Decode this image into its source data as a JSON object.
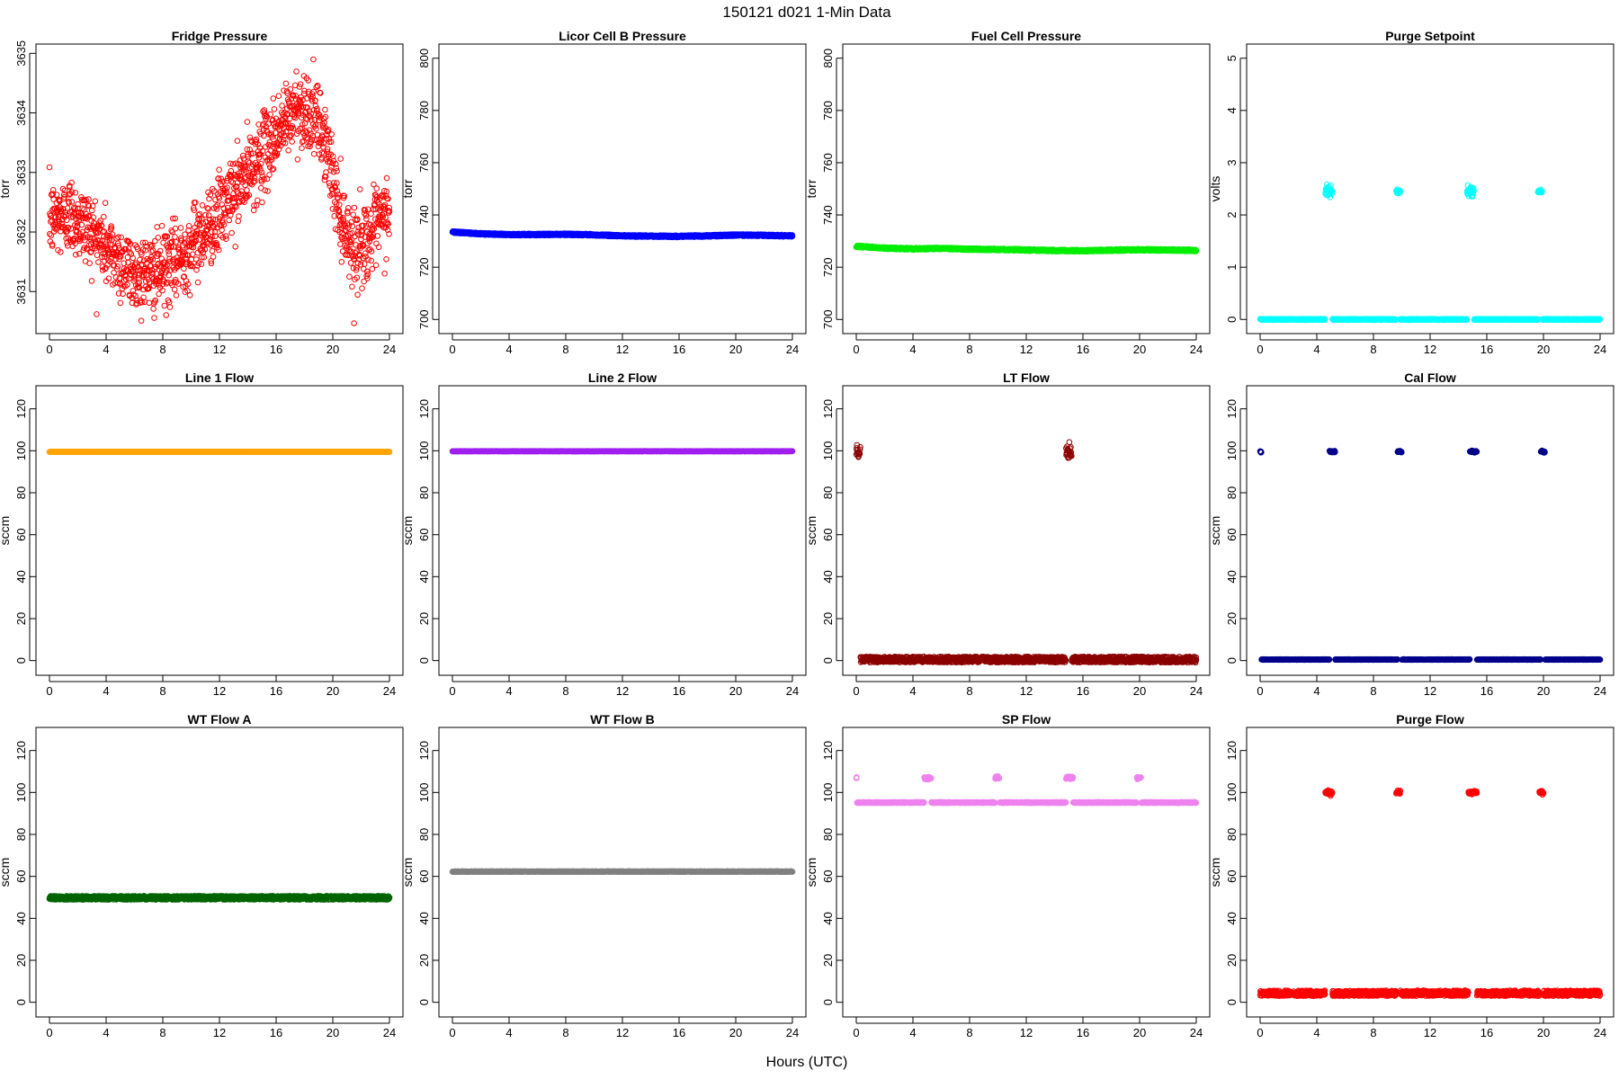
{
  "page": {
    "title": "150121   d021   1-Min Data",
    "xlabel": "Hours (UTC)"
  },
  "chart_data": [
    {
      "type": "scatter",
      "title": "Fridge Pressure",
      "ylabel": "torr",
      "color": "#ff0000",
      "ylim": [
        3630.4,
        3635.05
      ],
      "yticks": [
        3631,
        3632,
        3633,
        3634,
        3635
      ],
      "xlim": [
        0,
        24
      ],
      "xticks": [
        0,
        4,
        8,
        12,
        16,
        20,
        24
      ],
      "marker": "open-circle",
      "pattern": "noisy",
      "noise": 0.32,
      "n": 1400,
      "profile_x": [
        0,
        1.5,
        3,
        4.5,
        6,
        7.5,
        9,
        10.5,
        12,
        13.5,
        15,
        16.5,
        17.5,
        18.5,
        19.5,
        20.5,
        21.5,
        22.5,
        23.5,
        24
      ],
      "profile_y": [
        3632.2,
        3632.3,
        3632.0,
        3631.6,
        3631.3,
        3631.3,
        3631.5,
        3631.9,
        3632.3,
        3632.8,
        3633.3,
        3633.8,
        3634.1,
        3634.0,
        3633.5,
        3632.3,
        3631.7,
        3631.9,
        3632.2,
        3632.4
      ]
    },
    {
      "type": "scatter",
      "title": "Licor Cell B Pressure",
      "ylabel": "torr",
      "color": "#0000ff",
      "ylim": [
        697,
        803
      ],
      "yticks": [
        700,
        720,
        740,
        760,
        780,
        800
      ],
      "xlim": [
        0,
        24
      ],
      "xticks": [
        0,
        4,
        8,
        12,
        16,
        20,
        24
      ],
      "marker": "open-circle",
      "pattern": "dense",
      "noise": 0.35,
      "n": 1440,
      "profile_x": [
        0,
        2,
        4,
        6,
        8,
        10,
        12,
        14,
        16,
        18,
        20,
        22,
        24
      ],
      "profile_y": [
        733.5,
        732.8,
        732.5,
        732.5,
        732.6,
        732.4,
        732.0,
        731.9,
        731.8,
        732.0,
        732.3,
        732.2,
        732.0
      ]
    },
    {
      "type": "scatter",
      "title": "Fuel Cell Pressure",
      "ylabel": "torr",
      "color": "#00ee00",
      "ylim": [
        697,
        803
      ],
      "yticks": [
        700,
        720,
        740,
        760,
        780,
        800
      ],
      "xlim": [
        0,
        24
      ],
      "xticks": [
        0,
        4,
        8,
        12,
        16,
        20,
        24
      ],
      "marker": "open-circle",
      "pattern": "dense",
      "noise": 0.35,
      "n": 1440,
      "profile_x": [
        0,
        2,
        4,
        6,
        8,
        10,
        12,
        14,
        16,
        18,
        20,
        22,
        24
      ],
      "profile_y": [
        728.0,
        727.3,
        727.0,
        727.2,
        726.9,
        726.8,
        726.6,
        726.4,
        726.3,
        726.5,
        726.7,
        726.6,
        726.4
      ]
    },
    {
      "type": "scatter",
      "title": "Purge Setpoint",
      "ylabel": "volts",
      "color": "#00ffff",
      "ylim": [
        -0.15,
        5.15
      ],
      "yticks": [
        0,
        1,
        2,
        3,
        4,
        5
      ],
      "xlim": [
        0,
        24
      ],
      "xticks": [
        0,
        4,
        8,
        12,
        16,
        20,
        24
      ],
      "marker": "open-circle",
      "pattern": "flat",
      "baseline": 0,
      "noise": 0.01,
      "n": 1440,
      "clusters": [
        {
          "x_start": 4.6,
          "x_end": 5.1,
          "y": 2.45,
          "spread": 0.05
        },
        {
          "x_start": 9.6,
          "x_end": 9.9,
          "y": 2.45,
          "spread": 0.02
        },
        {
          "x_start": 14.6,
          "x_end": 15.1,
          "y": 2.45,
          "spread": 0.05
        },
        {
          "x_start": 19.6,
          "x_end": 19.9,
          "y": 2.45,
          "spread": 0.02
        }
      ]
    },
    {
      "type": "scatter",
      "title": "Line 1 Flow",
      "ylabel": "sccm",
      "color": "#ffa500",
      "ylim": [
        -4,
        128
      ],
      "yticks": [
        0,
        20,
        40,
        60,
        80,
        100,
        120
      ],
      "xlim": [
        0,
        24
      ],
      "xticks": [
        0,
        4,
        8,
        12,
        16,
        20,
        24
      ],
      "marker": "open-circle",
      "pattern": "flat",
      "baseline": 99.5,
      "noise": 0.05,
      "n": 1440
    },
    {
      "type": "scatter",
      "title": "Line 2 Flow",
      "ylabel": "sccm",
      "color": "#a020f0",
      "ylim": [
        -4,
        128
      ],
      "yticks": [
        0,
        20,
        40,
        60,
        80,
        100,
        120
      ],
      "xlim": [
        0,
        24
      ],
      "xticks": [
        0,
        4,
        8,
        12,
        16,
        20,
        24
      ],
      "marker": "open-circle",
      "pattern": "flat",
      "baseline": 99.8,
      "noise": 0.05,
      "n": 1440
    },
    {
      "type": "scatter",
      "title": "LT Flow",
      "ylabel": "sccm",
      "color": "#8b0000",
      "ylim": [
        -4,
        128
      ],
      "yticks": [
        0,
        20,
        40,
        60,
        80,
        100,
        120
      ],
      "xlim": [
        0,
        24
      ],
      "xticks": [
        0,
        4,
        8,
        12,
        16,
        20,
        24
      ],
      "marker": "open-circle",
      "pattern": "flat",
      "baseline": 0.5,
      "noise": 1.4,
      "n": 1440,
      "clusters": [
        {
          "x_start": 0.0,
          "x_end": 0.3,
          "y": 99.5,
          "spread": 1.5
        },
        {
          "x_start": 14.8,
          "x_end": 15.2,
          "y": 99.5,
          "spread": 1.8
        }
      ]
    },
    {
      "type": "scatter",
      "title": "Cal Flow",
      "ylabel": "sccm",
      "color": "#00008b",
      "ylim": [
        -4,
        128
      ],
      "yticks": [
        0,
        20,
        40,
        60,
        80,
        100,
        120
      ],
      "xlim": [
        0,
        24
      ],
      "xticks": [
        0,
        4,
        8,
        12,
        16,
        20,
        24
      ],
      "marker": "open-circle",
      "pattern": "flat",
      "baseline": 0.5,
      "noise": 0.15,
      "n": 1440,
      "clusters": [
        {
          "x_start": 0.0,
          "x_end": 0.1,
          "y": 99.5,
          "spread": 0.2
        },
        {
          "x_start": 4.9,
          "x_end": 5.3,
          "y": 99.6,
          "spread": 0.2
        },
        {
          "x_start": 9.7,
          "x_end": 10.0,
          "y": 99.6,
          "spread": 0.2
        },
        {
          "x_start": 14.8,
          "x_end": 15.3,
          "y": 99.6,
          "spread": 0.2
        },
        {
          "x_start": 19.8,
          "x_end": 20.1,
          "y": 99.6,
          "spread": 0.2
        }
      ]
    },
    {
      "type": "scatter",
      "title": "WT Flow A",
      "ylabel": "sccm",
      "color": "#006400",
      "ylim": [
        -4,
        128
      ],
      "yticks": [
        0,
        20,
        40,
        60,
        80,
        100,
        120
      ],
      "xlim": [
        0,
        24
      ],
      "xticks": [
        0,
        4,
        8,
        12,
        16,
        20,
        24
      ],
      "marker": "open-circle",
      "pattern": "flat",
      "baseline": 49.8,
      "noise": 0.9,
      "n": 1440
    },
    {
      "type": "scatter",
      "title": "WT Flow B",
      "ylabel": "sccm",
      "color": "#808080",
      "ylim": [
        -4,
        128
      ],
      "yticks": [
        0,
        20,
        40,
        60,
        80,
        100,
        120
      ],
      "xlim": [
        0,
        24
      ],
      "xticks": [
        0,
        4,
        8,
        12,
        16,
        20,
        24
      ],
      "marker": "open-circle",
      "pattern": "flat",
      "baseline": 62.3,
      "noise": 0.15,
      "n": 1440
    },
    {
      "type": "scatter",
      "title": "SP Flow",
      "ylabel": "sccm",
      "color": "#ee82ee",
      "ylim": [
        -4,
        128
      ],
      "yticks": [
        0,
        20,
        40,
        60,
        80,
        100,
        120
      ],
      "xlim": [
        0,
        24
      ],
      "xticks": [
        0,
        4,
        8,
        12,
        16,
        20,
        24
      ],
      "marker": "open-circle",
      "pattern": "flat",
      "baseline": 95.2,
      "noise": 0.2,
      "n": 1440,
      "clusters": [
        {
          "x_start": 0.0,
          "x_end": 0.05,
          "y": 107,
          "spread": 0.2
        },
        {
          "x_start": 4.8,
          "x_end": 5.3,
          "y": 107,
          "spread": 0.3
        },
        {
          "x_start": 9.8,
          "x_end": 10.1,
          "y": 107,
          "spread": 0.3
        },
        {
          "x_start": 14.8,
          "x_end": 15.3,
          "y": 107,
          "spread": 0.3
        },
        {
          "x_start": 19.8,
          "x_end": 20.1,
          "y": 107,
          "spread": 0.3
        }
      ]
    },
    {
      "type": "scatter",
      "title": "Purge Flow",
      "ylabel": "sccm",
      "color": "#ff0000",
      "ylim": [
        -4,
        128
      ],
      "yticks": [
        0,
        20,
        40,
        60,
        80,
        100,
        120
      ],
      "xlim": [
        0,
        24
      ],
      "xticks": [
        0,
        4,
        8,
        12,
        16,
        20,
        24
      ],
      "marker": "open-circle",
      "pattern": "flat",
      "baseline": 4.3,
      "noise": 1.3,
      "n": 1440,
      "clusters": [
        {
          "x_start": 4.6,
          "x_end": 5.1,
          "y": 100,
          "spread": 0.5
        },
        {
          "x_start": 9.6,
          "x_end": 9.9,
          "y": 100,
          "spread": 0.4
        },
        {
          "x_start": 14.7,
          "x_end": 15.3,
          "y": 100,
          "spread": 0.4
        },
        {
          "x_start": 19.7,
          "x_end": 20.0,
          "y": 100,
          "spread": 0.4
        }
      ]
    }
  ]
}
